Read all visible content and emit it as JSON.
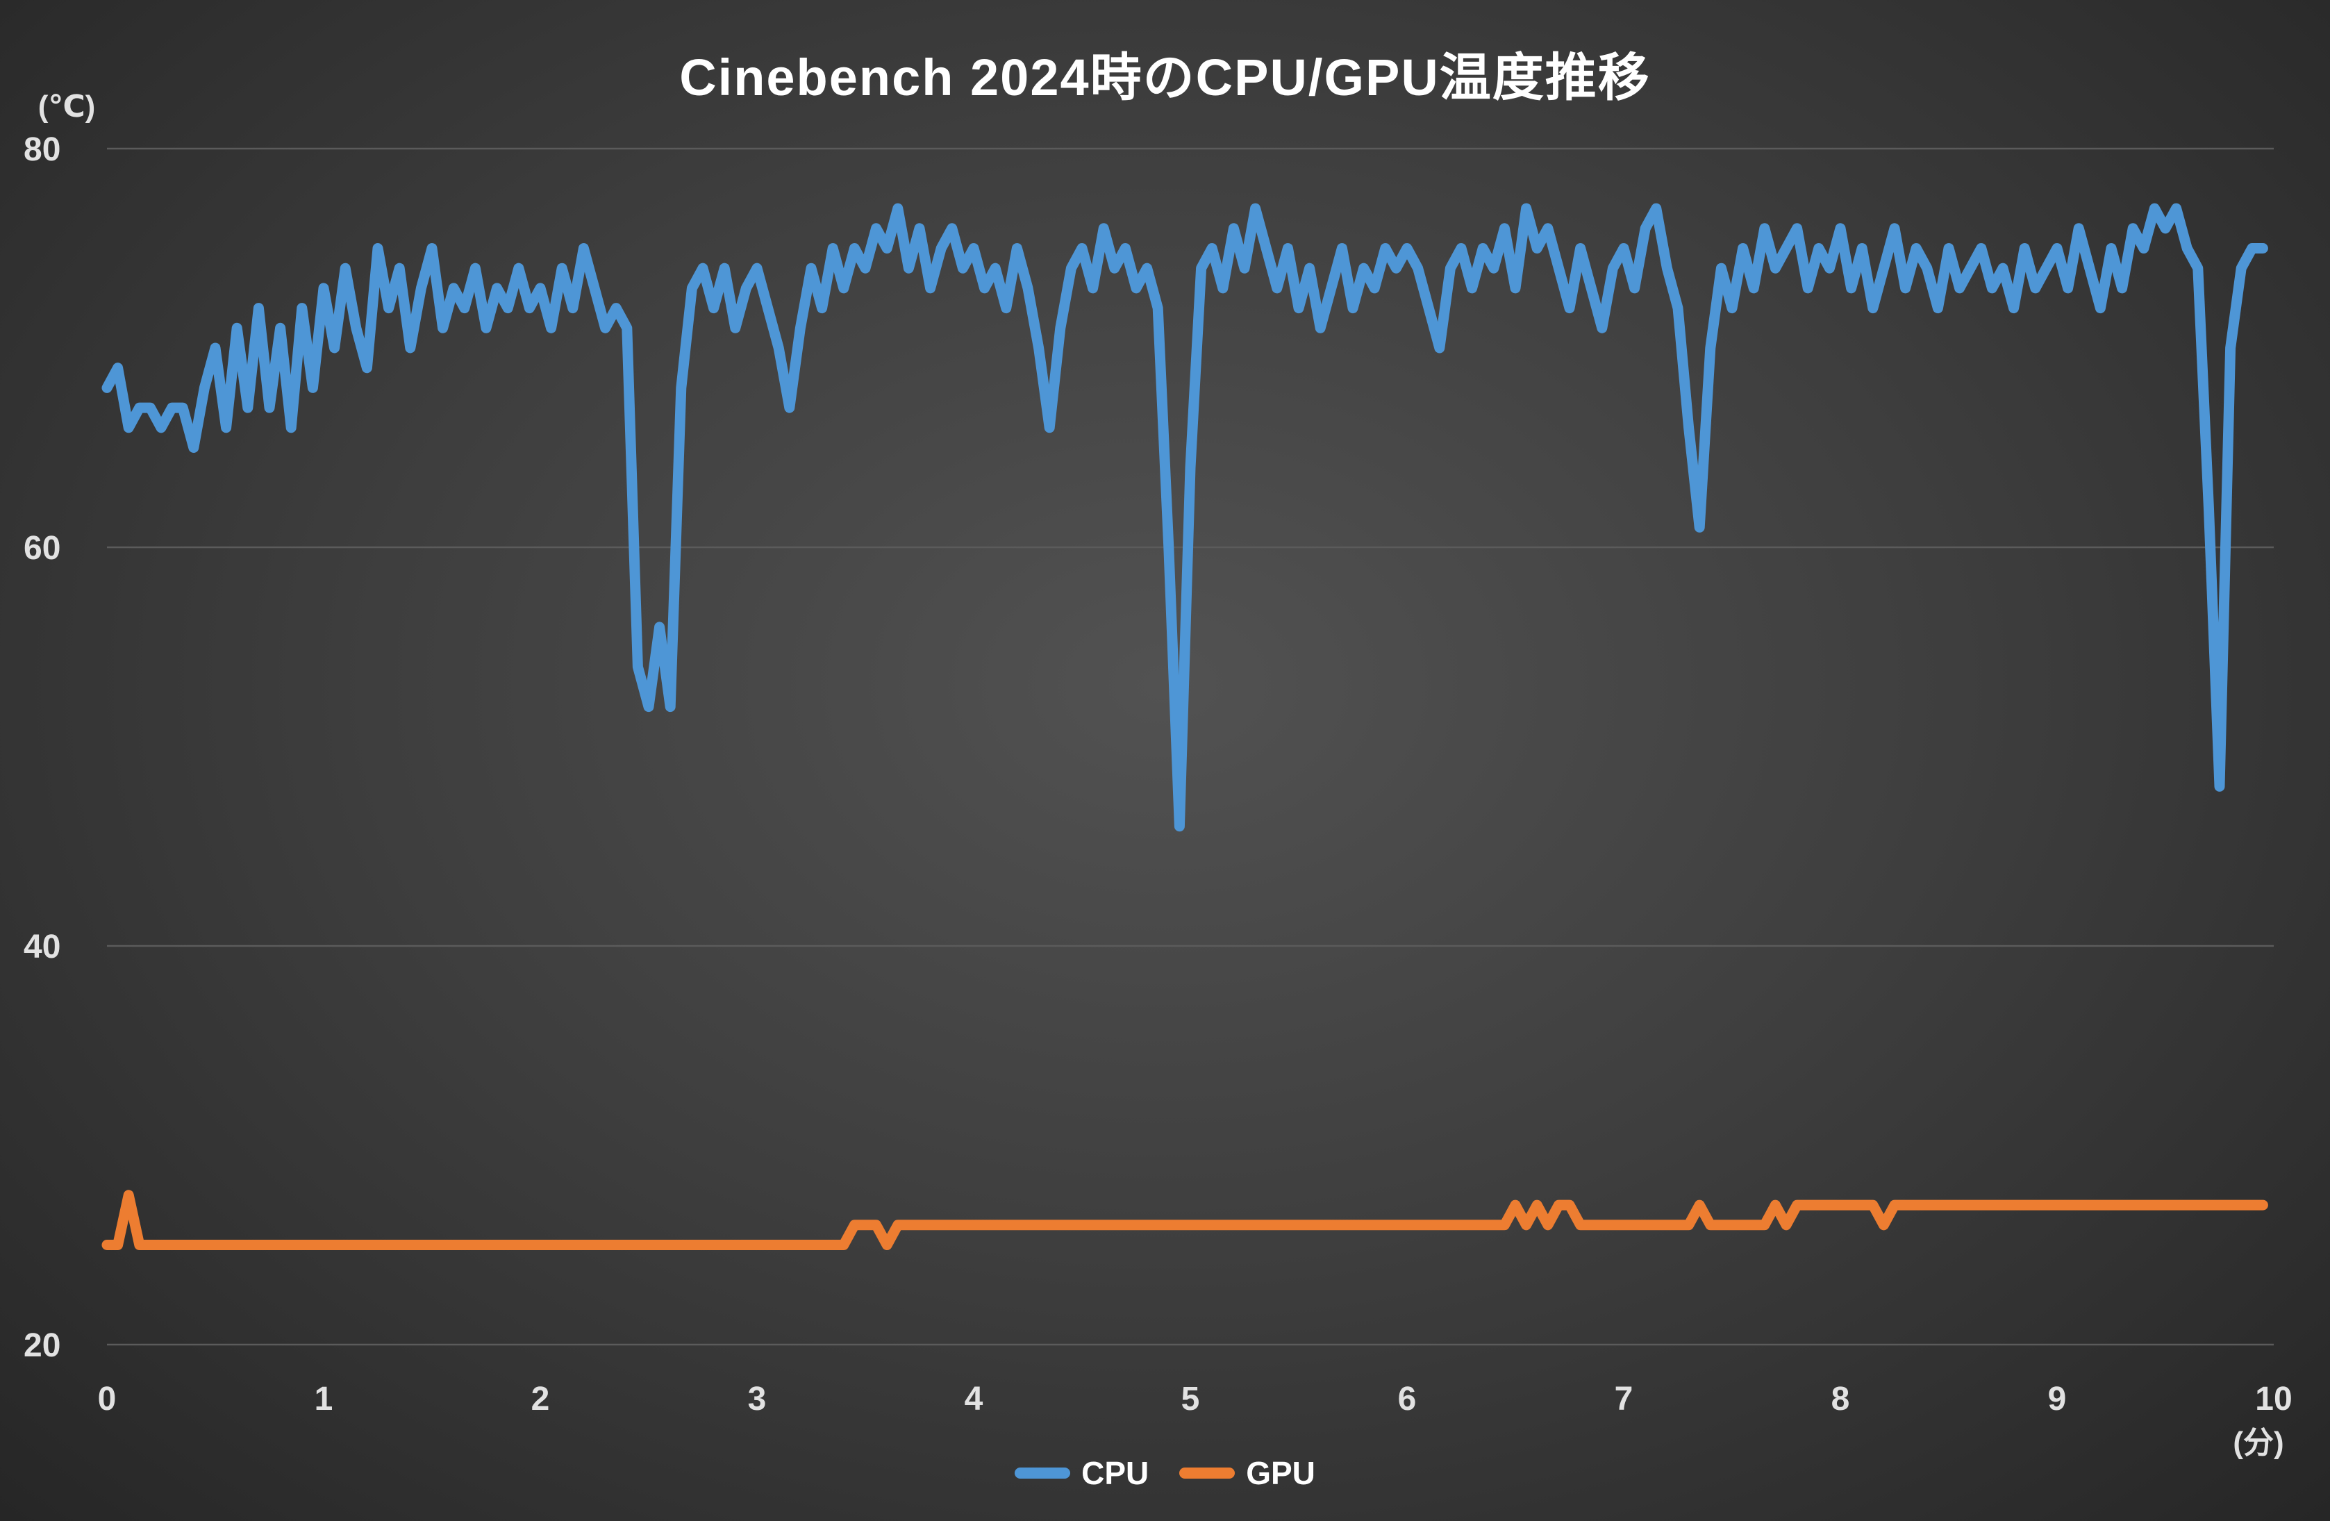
{
  "chart_data": {
    "type": "line",
    "title": "Cinebench 2024時のCPU/GPU温度推移",
    "ylabel": "(℃)",
    "xlabel": "(分)",
    "xlim": [
      0,
      10
    ],
    "ylim": [
      20,
      80
    ],
    "yticks": [
      80,
      60,
      40,
      20
    ],
    "xticks": [
      0,
      1,
      2,
      3,
      4,
      5,
      6,
      7,
      8,
      9,
      10
    ],
    "grid": true,
    "legend_position": "bottom",
    "x_start": 0,
    "x_step": 0.05,
    "series": [
      {
        "name": "CPU",
        "color": "#4E96D6",
        "values": [
          68,
          69,
          66,
          67,
          67,
          66,
          67,
          67,
          65,
          68,
          70,
          66,
          71,
          67,
          72,
          67,
          71,
          66,
          72,
          68,
          73,
          70,
          74,
          71,
          69,
          75,
          72,
          74,
          70,
          73,
          75,
          71,
          73,
          72,
          74,
          71,
          73,
          72,
          74,
          72,
          73,
          71,
          74,
          72,
          75,
          73,
          71,
          72,
          71,
          54,
          52,
          56,
          52,
          68,
          73,
          74,
          72,
          74,
          71,
          73,
          74,
          72,
          70,
          67,
          71,
          74,
          72,
          75,
          73,
          75,
          74,
          76,
          75,
          77,
          74,
          76,
          73,
          75,
          76,
          74,
          75,
          73,
          74,
          72,
          75,
          73,
          70,
          66,
          71,
          74,
          75,
          73,
          76,
          74,
          75,
          73,
          74,
          72,
          60,
          46,
          64,
          74,
          75,
          73,
          76,
          74,
          77,
          75,
          73,
          75,
          72,
          74,
          71,
          73,
          75,
          72,
          74,
          73,
          75,
          74,
          75,
          74,
          72,
          70,
          74,
          75,
          73,
          75,
          74,
          76,
          73,
          77,
          75,
          76,
          74,
          72,
          75,
          73,
          71,
          74,
          75,
          73,
          76,
          77,
          74,
          72,
          66,
          61,
          70,
          74,
          72,
          75,
          73,
          76,
          74,
          75,
          76,
          73,
          75,
          74,
          76,
          73,
          75,
          72,
          74,
          76,
          73,
          75,
          74,
          72,
          75,
          73,
          74,
          75,
          73,
          74,
          72,
          75,
          73,
          74,
          75,
          73,
          76,
          74,
          72,
          75,
          73,
          76,
          75,
          77,
          76,
          77,
          75,
          74,
          62,
          48,
          70,
          74,
          75,
          75
        ]
      },
      {
        "name": "GPU",
        "color": "#ED7D31",
        "values": [
          25,
          25,
          27.5,
          25,
          25,
          25,
          25,
          25,
          25,
          25,
          25,
          25,
          25,
          25,
          25,
          25,
          25,
          25,
          25,
          25,
          25,
          25,
          25,
          25,
          25,
          25,
          25,
          25,
          25,
          25,
          25,
          25,
          25,
          25,
          25,
          25,
          25,
          25,
          25,
          25,
          25,
          25,
          25,
          25,
          25,
          25,
          25,
          25,
          25,
          25,
          25,
          25,
          25,
          25,
          25,
          25,
          25,
          25,
          25,
          25,
          25,
          25,
          25,
          25,
          25,
          25,
          25,
          25,
          25,
          26,
          26,
          26,
          25,
          26,
          26,
          26,
          26,
          26,
          26,
          26,
          26,
          26,
          26,
          26,
          26,
          26,
          26,
          26,
          26,
          26,
          26,
          26,
          26,
          26,
          26,
          26,
          26,
          26,
          26,
          26,
          26,
          26,
          26,
          26,
          26,
          26,
          26,
          26,
          26,
          26,
          26,
          26,
          26,
          26,
          26,
          26,
          26,
          26,
          26,
          26,
          26,
          26,
          26,
          26,
          26,
          26,
          26,
          26,
          26,
          26,
          27,
          26,
          27,
          26,
          27,
          27,
          26,
          26,
          26,
          26,
          26,
          26,
          26,
          26,
          26,
          26,
          26,
          27,
          26,
          26,
          26,
          26,
          26,
          26,
          27,
          26,
          27,
          27,
          27,
          27,
          27,
          27,
          27,
          27,
          26,
          27,
          27,
          27,
          27,
          27,
          27,
          27,
          27,
          27,
          27,
          27,
          27,
          27,
          27,
          27,
          27,
          27,
          27,
          27,
          27,
          27,
          27,
          27,
          27,
          27,
          27,
          27,
          27,
          27,
          27,
          27,
          27,
          27,
          27,
          27
        ]
      }
    ],
    "colors": {
      "background_center": "#525252",
      "background_edge": "#262626",
      "grid_line": "#5b5b5b",
      "tick_text": "#e2e2e2",
      "title_text": "#ffffff"
    }
  }
}
